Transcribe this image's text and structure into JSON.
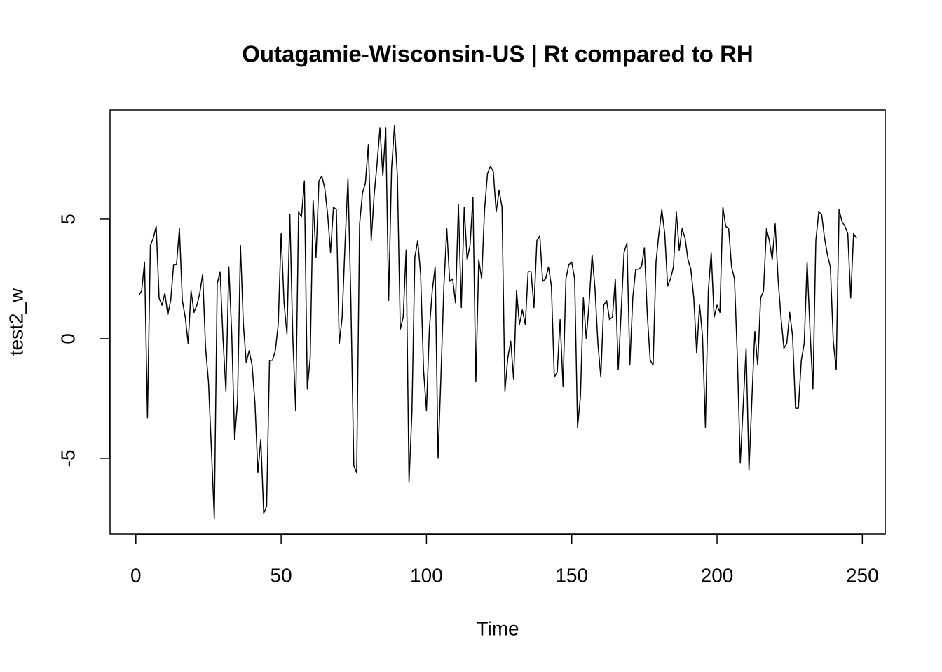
{
  "chart_data": {
    "type": "line",
    "title": "Outagamie-Wisconsin-US | Rt compared to RH",
    "x_label": "Time",
    "y_label": "test2_w",
    "x": [
      1,
      2,
      3,
      4,
      5,
      6,
      7,
      8,
      9,
      10,
      11,
      12,
      13,
      14,
      15,
      16,
      17,
      18,
      19,
      20,
      21,
      22,
      23,
      24,
      25,
      26,
      27,
      28,
      29,
      30,
      31,
      32,
      33,
      34,
      35,
      36,
      37,
      38,
      39,
      40,
      41,
      42,
      43,
      44,
      45,
      46,
      47,
      48,
      49,
      50,
      51,
      52,
      53,
      54,
      55,
      56,
      57,
      58,
      59,
      60,
      61,
      62,
      63,
      64,
      65,
      66,
      67,
      68,
      69,
      70,
      71,
      72,
      73,
      74,
      75,
      76,
      77,
      78,
      79,
      80,
      81,
      82,
      83,
      84,
      85,
      86,
      87,
      88,
      89,
      90,
      91,
      92,
      93,
      94,
      95,
      96,
      97,
      98,
      99,
      100,
      101,
      102,
      103,
      104,
      105,
      106,
      107,
      108,
      109,
      110,
      111,
      112,
      113,
      114,
      115,
      116,
      117,
      118,
      119,
      120,
      121,
      122,
      123,
      124,
      125,
      126,
      127,
      128,
      129,
      130,
      131,
      132,
      133,
      134,
      135,
      136,
      137,
      138,
      139,
      140,
      141,
      142,
      143,
      144,
      145,
      146,
      147,
      148,
      149,
      150,
      151,
      152,
      153,
      154,
      155,
      156,
      157,
      158,
      159,
      160,
      161,
      162,
      163,
      164,
      165,
      166,
      167,
      168,
      169,
      170,
      171,
      172,
      173,
      174,
      175,
      176,
      177,
      178,
      179,
      180,
      181,
      182,
      183,
      184,
      185,
      186,
      187,
      188,
      189,
      190,
      191,
      192,
      193,
      194,
      195,
      196,
      197,
      198,
      199,
      200,
      201,
      202,
      203,
      204,
      205,
      206,
      207,
      208,
      209,
      210,
      211,
      212,
      213,
      214,
      215,
      216,
      217,
      218,
      219,
      220,
      221,
      222,
      223,
      224,
      225,
      226,
      227,
      228,
      229,
      230,
      231,
      232,
      233,
      234,
      235,
      236,
      237,
      238,
      239,
      240,
      241,
      242,
      243,
      244,
      245,
      246,
      247,
      248
    ],
    "series": [
      {
        "color": "#000000",
        "values": [
          1.8,
          2.0,
          3.2,
          -3.3,
          3.9,
          4.2,
          4.7,
          1.7,
          1.4,
          1.9,
          1.0,
          1.6,
          3.1,
          3.1,
          4.6,
          1.6,
          0.9,
          -0.2,
          2.0,
          1.1,
          1.4,
          1.9,
          2.7,
          -0.4,
          -1.8,
          -4.6,
          -7.5,
          2.3,
          2.8,
          0,
          -2.2,
          3.0,
          0.2,
          -4.2,
          -2.6,
          3.9,
          0.6,
          -1.0,
          -0.5,
          -1.1,
          -2.7,
          -5.6,
          -4.2,
          -7.3,
          -7.0,
          -0.9,
          -0.9,
          -0.5,
          0.6,
          4.4,
          1.5,
          0.2,
          5.2,
          0.1,
          -3.0,
          5.3,
          5.1,
          6.6,
          -2.1,
          -0.8,
          5.8,
          3.4,
          6.6,
          6.8,
          6.3,
          5.2,
          3.6,
          5.5,
          5.4,
          -0.2,
          0.9,
          4.0,
          6.7,
          1.6,
          -5.3,
          -5.6,
          4.8,
          6.1,
          6.5,
          8.1,
          4.1,
          6.0,
          7.3,
          8.8,
          6.8,
          8.8,
          1.6,
          7.1,
          8.9,
          6.8,
          0.4,
          0.9,
          3.7,
          -6.0,
          -3.1,
          3.4,
          4.1,
          2.7,
          -1.3,
          -3.0,
          0.4,
          2.0,
          3.0,
          -5.0,
          -1.5,
          2.2,
          4.6,
          2.4,
          2.5,
          1.5,
          5.6,
          1.3,
          5.5,
          3.3,
          3.9,
          5.9,
          -1.8,
          3.3,
          2.5,
          5.4,
          6.9,
          7.2,
          7.0,
          5.3,
          6.2,
          5.5,
          -2.2,
          -0.8,
          -0.1,
          -1.7,
          2.0,
          0.6,
          1.2,
          0.6,
          2.8,
          2.8,
          1.3,
          4.1,
          4.3,
          2.4,
          2.5,
          3.0,
          2.2,
          -1.6,
          -1.4,
          0.8,
          -2.0,
          2.5,
          3.1,
          3.2,
          2.5,
          -3.7,
          -2.4,
          1.7,
          0.0,
          1.5,
          3.5,
          2.1,
          -0.2,
          -1.6,
          1.4,
          1.6,
          0.8,
          0.9,
          2.5,
          -1.3,
          1.1,
          3.6,
          4.0,
          -1.1,
          1.7,
          2.9,
          2.9,
          3.0,
          3.8,
          1.0,
          -0.9,
          -1.1,
          3.2,
          4.4,
          5.4,
          4.4,
          2.2,
          2.5,
          3.0,
          5.3,
          3.7,
          4.6,
          4.2,
          3.3,
          2.9,
          1.7,
          -0.6,
          1.4,
          0.1,
          -3.7,
          2.0,
          3.6,
          0.9,
          1.4,
          1.1,
          5.5,
          4.7,
          4.6,
          3.0,
          2.5,
          -0.8,
          -5.2,
          -2.8,
          -0.4,
          -5.5,
          -2.5,
          0.3,
          -1.1,
          1.7,
          2.0,
          4.6,
          4.1,
          3.3,
          4.8,
          2.5,
          0.9,
          -0.4,
          -0.2,
          1.1,
          0.1,
          -2.9,
          -2.9,
          -0.9,
          -0.2,
          3.2,
          0.3,
          -2.1,
          4.1,
          5.3,
          5.2,
          4.2,
          3.5,
          3.0,
          -0.1,
          -1.3,
          5.4,
          4.9,
          4.7,
          4.4,
          1.7,
          4.4,
          4.2
        ]
      }
    ],
    "xlim": [
      -8.88,
      257.88
    ],
    "ylim": [
      -8.16,
      9.56
    ],
    "xticks": [
      0,
      50,
      100,
      150,
      200,
      250
    ],
    "yticks": [
      -5,
      0,
      5
    ]
  }
}
